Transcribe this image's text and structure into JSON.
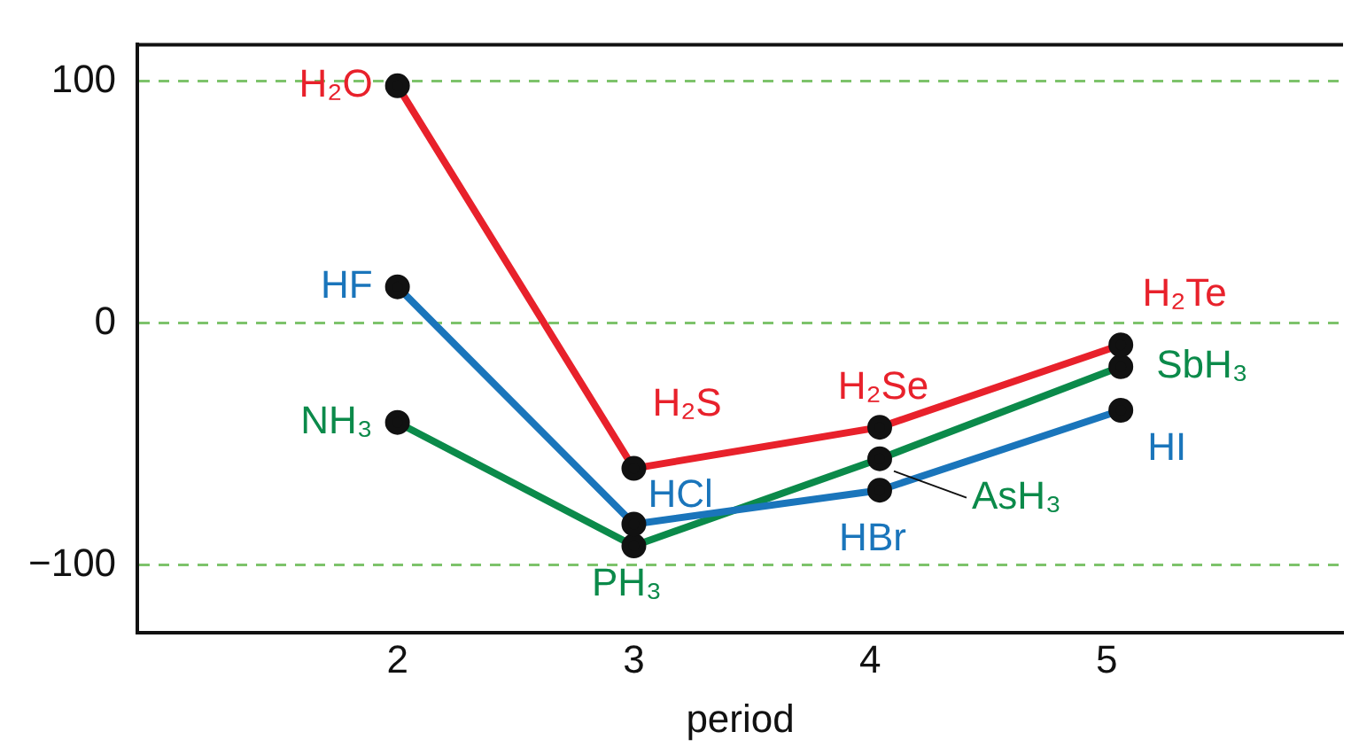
{
  "chart_data": {
    "type": "line",
    "xlabel": "period",
    "xlim": [
      0.9,
      6.0
    ],
    "xticks": [
      2,
      3,
      4,
      5
    ],
    "ylim": [
      -128,
      115
    ],
    "yticks": [
      100,
      0,
      {
        "value": -100,
        "label": "−100"
      }
    ],
    "grid": "y",
    "marker": "circle",
    "line_style": "solid",
    "legend": false,
    "series": [
      {
        "color": "#e8212b",
        "x": [
          2,
          3,
          4.04,
          5.06
        ],
        "values": [
          98,
          -60,
          -43,
          -9
        ]
      },
      {
        "color": "#1a75bb",
        "x": [
          2,
          3,
          4.04,
          5.06
        ],
        "values": [
          15,
          -83,
          -69,
          -36
        ]
      },
      {
        "color": "#0b8a4a",
        "x": [
          2,
          3,
          4.04,
          5.06
        ],
        "values": [
          -41,
          -92,
          -56,
          -18
        ]
      }
    ],
    "annotations": [
      {
        "text": "H₂O",
        "x": 2,
        "y": 98
      },
      {
        "text": "H₂S",
        "x": 3,
        "y": -60
      },
      {
        "text": "H₂Se",
        "x": 4.04,
        "y": -43
      },
      {
        "text": "H₂Te",
        "x": 5.06,
        "y": -9
      },
      {
        "text": "HF",
        "x": 2,
        "y": 15
      },
      {
        "text": "HCl",
        "x": 3,
        "y": -83
      },
      {
        "text": "HBr",
        "x": 4.04,
        "y": -69
      },
      {
        "text": "HI",
        "x": 5.06,
        "y": -36
      },
      {
        "text": "NH₃",
        "x": 2,
        "y": -41
      },
      {
        "text": "PH₃",
        "x": 3,
        "y": -92
      },
      {
        "text": "AsH₃",
        "x": 4.04,
        "y": -56
      },
      {
        "text": "SbH₃",
        "x": 5.06,
        "y": -18
      }
    ]
  }
}
